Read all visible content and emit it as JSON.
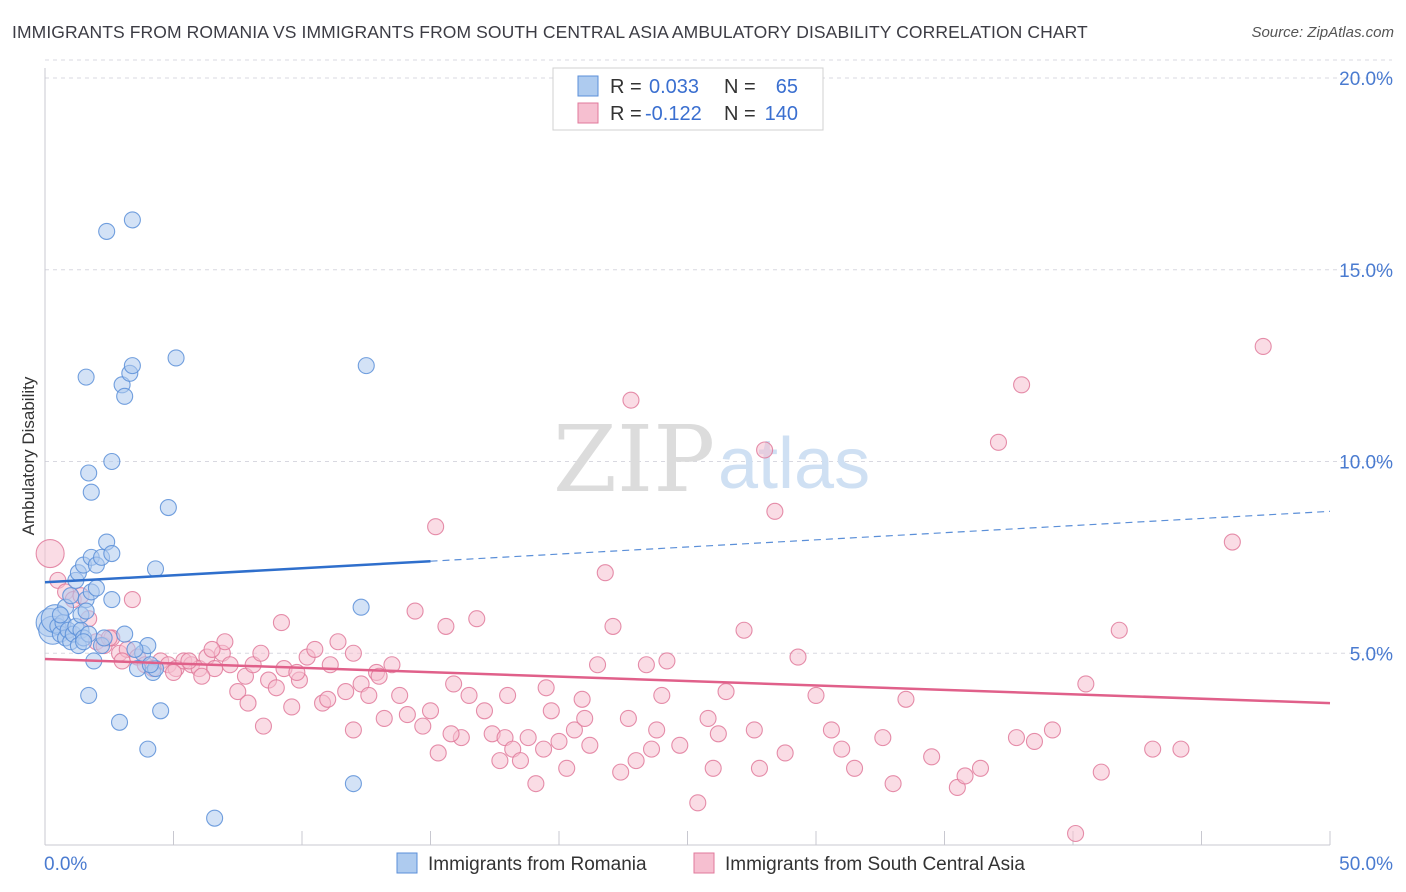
{
  "title": "IMMIGRANTS FROM ROMANIA VS IMMIGRANTS FROM SOUTH CENTRAL ASIA AMBULATORY DISABILITY CORRELATION CHART",
  "source": "Source: ZipAtlas.com",
  "watermark": {
    "zip": "ZIP",
    "atlas": "atlas"
  },
  "colors": {
    "blue": "#5b8fd8",
    "blue_fill": "#aecbef",
    "blue_line": "#2f6fcc",
    "pink": "#e07a9b",
    "pink_fill": "#f6bfd0",
    "pink_line": "#e0608a",
    "grid": "#d8d8e0",
    "tick_text": "#4a7bd0"
  },
  "legend": {
    "rows": [
      {
        "r_label": "R =",
        "r_value": "0.033",
        "n_label": "N =",
        "n_value": "65"
      },
      {
        "r_label": "R =",
        "r_value": "-0.122",
        "n_label": "N =",
        "n_value": "140"
      }
    ]
  },
  "chart_data": {
    "type": "scatter",
    "xlabel": "",
    "ylabel": "Ambulatory Disability",
    "xlim": [
      0,
      50
    ],
    "ylim": [
      0,
      20
    ],
    "x_tick_labels": [
      "0.0%",
      "50.0%"
    ],
    "y_ticks": [
      5,
      10,
      15,
      20
    ],
    "y_tick_labels": [
      "5.0%",
      "10.0%",
      "15.0%",
      "20.0%"
    ],
    "grid": true,
    "legend_position": "top-center",
    "series": [
      {
        "name": "Immigrants from Romania",
        "color": "#5b8fd8",
        "trend": {
          "x0": 0,
          "y0": 6.85,
          "x1": 15,
          "y1": 7.4,
          "x_ext": 50,
          "y_ext": 8.7
        },
        "points": [
          [
            0.2,
            5.8
          ],
          [
            0.3,
            5.6
          ],
          [
            0.4,
            5.9
          ],
          [
            0.5,
            5.7
          ],
          [
            0.6,
            5.5
          ],
          [
            0.7,
            5.8
          ],
          [
            0.8,
            5.4
          ],
          [
            0.9,
            5.6
          ],
          [
            1.0,
            5.3
          ],
          [
            1.1,
            5.5
          ],
          [
            1.2,
            5.7
          ],
          [
            1.3,
            5.2
          ],
          [
            1.4,
            5.6
          ],
          [
            1.5,
            5.4
          ],
          [
            0.8,
            6.2
          ],
          [
            1.0,
            6.5
          ],
          [
            1.2,
            6.9
          ],
          [
            1.3,
            7.1
          ],
          [
            1.5,
            7.3
          ],
          [
            1.6,
            6.4
          ],
          [
            1.8,
            7.5
          ],
          [
            2.0,
            7.3
          ],
          [
            2.2,
            7.5
          ],
          [
            2.4,
            7.9
          ],
          [
            2.6,
            7.6
          ],
          [
            1.8,
            6.6
          ],
          [
            2.0,
            6.7
          ],
          [
            1.4,
            6.0
          ],
          [
            1.6,
            6.1
          ],
          [
            1.7,
            5.5
          ],
          [
            2.2,
            5.2
          ],
          [
            2.3,
            5.4
          ],
          [
            3.1,
            5.5
          ],
          [
            1.9,
            4.8
          ],
          [
            1.7,
            3.9
          ],
          [
            2.9,
            3.2
          ],
          [
            3.6,
            4.6
          ],
          [
            3.8,
            5.0
          ],
          [
            4.0,
            5.2
          ],
          [
            4.2,
            4.5
          ],
          [
            4.3,
            4.6
          ],
          [
            4.1,
            4.7
          ],
          [
            4.5,
            3.5
          ],
          [
            4.0,
            2.5
          ],
          [
            6.6,
            0.7
          ],
          [
            3.0,
            12.0
          ],
          [
            3.1,
            11.7
          ],
          [
            3.3,
            12.3
          ],
          [
            3.4,
            12.5
          ],
          [
            5.1,
            12.7
          ],
          [
            1.6,
            12.2
          ],
          [
            2.4,
            16.0
          ],
          [
            3.4,
            16.3
          ],
          [
            1.7,
            9.7
          ],
          [
            1.8,
            9.2
          ],
          [
            2.6,
            10.0
          ],
          [
            4.8,
            8.8
          ],
          [
            4.3,
            7.2
          ],
          [
            12.5,
            12.5
          ],
          [
            12.3,
            6.2
          ],
          [
            12.0,
            1.6
          ],
          [
            1.5,
            5.3
          ],
          [
            0.6,
            6.0
          ],
          [
            2.6,
            6.4
          ],
          [
            3.5,
            5.1
          ]
        ]
      },
      {
        "name": "Immigrants from South Central Asia",
        "color": "#e07a9b",
        "trend": {
          "x0": 0,
          "y0": 4.85,
          "x1": 50,
          "y1": 3.7
        },
        "points": [
          [
            0.2,
            7.6
          ],
          [
            0.5,
            6.9
          ],
          [
            0.8,
            6.6
          ],
          [
            1.1,
            6.4
          ],
          [
            1.4,
            6.5
          ],
          [
            1.7,
            5.9
          ],
          [
            2.0,
            5.3
          ],
          [
            2.3,
            5.2
          ],
          [
            2.6,
            5.4
          ],
          [
            2.9,
            5.0
          ],
          [
            3.2,
            5.1
          ],
          [
            3.4,
            6.4
          ],
          [
            3.6,
            4.9
          ],
          [
            3.9,
            4.7
          ],
          [
            4.2,
            4.6
          ],
          [
            4.5,
            4.8
          ],
          [
            4.8,
            4.7
          ],
          [
            5.1,
            4.6
          ],
          [
            5.4,
            4.8
          ],
          [
            5.7,
            4.7
          ],
          [
            6.0,
            4.6
          ],
          [
            6.3,
            4.9
          ],
          [
            6.6,
            4.6
          ],
          [
            6.9,
            5.0
          ],
          [
            7.2,
            4.7
          ],
          [
            7.5,
            4.0
          ],
          [
            7.8,
            4.4
          ],
          [
            8.1,
            4.7
          ],
          [
            8.4,
            5.0
          ],
          [
            8.7,
            4.3
          ],
          [
            9.0,
            4.1
          ],
          [
            9.3,
            4.6
          ],
          [
            9.6,
            3.6
          ],
          [
            9.9,
            4.3
          ],
          [
            10.2,
            4.9
          ],
          [
            10.5,
            5.1
          ],
          [
            10.8,
            3.7
          ],
          [
            11.1,
            4.7
          ],
          [
            11.4,
            5.3
          ],
          [
            11.7,
            4.0
          ],
          [
            12.0,
            5.0
          ],
          [
            12.3,
            4.2
          ],
          [
            12.6,
            3.9
          ],
          [
            12.9,
            4.5
          ],
          [
            13.2,
            3.3
          ],
          [
            13.5,
            4.7
          ],
          [
            13.8,
            3.9
          ],
          [
            14.1,
            3.4
          ],
          [
            14.4,
            6.1
          ],
          [
            14.7,
            3.1
          ],
          [
            15.0,
            3.5
          ],
          [
            15.3,
            2.4
          ],
          [
            15.6,
            5.7
          ],
          [
            15.9,
            4.2
          ],
          [
            16.2,
            2.8
          ],
          [
            16.5,
            3.9
          ],
          [
            16.8,
            5.9
          ],
          [
            17.1,
            3.5
          ],
          [
            17.4,
            2.9
          ],
          [
            17.7,
            2.2
          ],
          [
            17.9,
            2.8
          ],
          [
            18.2,
            2.5
          ],
          [
            18.5,
            2.2
          ],
          [
            18.8,
            2.8
          ],
          [
            19.1,
            1.6
          ],
          [
            19.4,
            2.5
          ],
          [
            19.7,
            3.5
          ],
          [
            20.0,
            2.7
          ],
          [
            20.3,
            2.0
          ],
          [
            20.6,
            3.0
          ],
          [
            20.9,
            3.8
          ],
          [
            21.2,
            2.6
          ],
          [
            21.5,
            4.7
          ],
          [
            21.8,
            7.1
          ],
          [
            22.1,
            5.7
          ],
          [
            22.4,
            1.9
          ],
          [
            22.7,
            3.3
          ],
          [
            23.0,
            2.2
          ],
          [
            23.4,
            4.7
          ],
          [
            23.8,
            3.0
          ],
          [
            24.2,
            4.8
          ],
          [
            24.7,
            2.6
          ],
          [
            25.4,
            1.1
          ],
          [
            25.8,
            3.3
          ],
          [
            26.0,
            2.0
          ],
          [
            26.5,
            4.0
          ],
          [
            27.2,
            5.6
          ],
          [
            27.6,
            3.0
          ],
          [
            28.0,
            10.3
          ],
          [
            28.4,
            8.7
          ],
          [
            28.8,
            2.4
          ],
          [
            29.3,
            4.9
          ],
          [
            30.6,
            3.0
          ],
          [
            31.5,
            2.0
          ],
          [
            32.6,
            2.8
          ],
          [
            33.0,
            1.6
          ],
          [
            34.5,
            2.3
          ],
          [
            35.5,
            1.5
          ],
          [
            35.8,
            1.8
          ],
          [
            36.4,
            2.0
          ],
          [
            37.1,
            10.5
          ],
          [
            38.0,
            12.0
          ],
          [
            39.2,
            3.0
          ],
          [
            40.1,
            0.3
          ],
          [
            40.5,
            4.2
          ],
          [
            41.1,
            1.9
          ],
          [
            43.1,
            2.5
          ],
          [
            46.2,
            7.9
          ],
          [
            47.4,
            13.0
          ],
          [
            22.8,
            11.6
          ],
          [
            15.2,
            8.3
          ],
          [
            9.2,
            5.8
          ],
          [
            7.0,
            5.3
          ],
          [
            6.5,
            5.1
          ],
          [
            5.6,
            4.8
          ],
          [
            5.0,
            4.5
          ],
          [
            3.0,
            4.8
          ],
          [
            2.5,
            5.4
          ],
          [
            12.0,
            3.0
          ],
          [
            13.0,
            4.4
          ],
          [
            18.0,
            3.9
          ],
          [
            19.5,
            4.1
          ],
          [
            24.0,
            3.9
          ],
          [
            26.2,
            2.9
          ],
          [
            27.8,
            2.0
          ],
          [
            30.0,
            3.9
          ],
          [
            31.0,
            2.5
          ],
          [
            33.5,
            3.8
          ],
          [
            37.8,
            2.8
          ],
          [
            38.5,
            2.7
          ],
          [
            41.8,
            5.6
          ],
          [
            44.2,
            2.5
          ],
          [
            9.8,
            4.5
          ],
          [
            11.0,
            3.8
          ],
          [
            15.8,
            2.9
          ],
          [
            21.0,
            3.3
          ],
          [
            8.5,
            3.1
          ],
          [
            6.1,
            4.4
          ],
          [
            7.9,
            3.7
          ],
          [
            23.6,
            2.5
          ]
        ]
      }
    ]
  }
}
